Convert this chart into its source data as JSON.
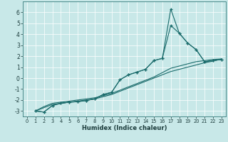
{
  "xlabel": "Humidex (Indice chaleur)",
  "bg_color": "#c8e8e8",
  "grid_color": "#ffffff",
  "line_color": "#1a6b6b",
  "xlim": [
    -0.5,
    23.5
  ],
  "ylim": [
    -3.5,
    7.0
  ],
  "xticks": [
    0,
    1,
    2,
    3,
    4,
    5,
    6,
    7,
    8,
    9,
    10,
    11,
    12,
    13,
    14,
    15,
    16,
    17,
    18,
    19,
    20,
    21,
    22,
    23
  ],
  "yticks": [
    -3,
    -2,
    -1,
    0,
    1,
    2,
    3,
    4,
    5,
    6
  ],
  "line1_x": [
    1,
    2,
    3,
    4,
    5,
    6,
    7,
    8,
    9,
    10,
    11,
    12,
    13,
    14,
    15,
    16,
    17,
    18,
    19,
    20,
    21,
    22,
    23
  ],
  "line1_y": [
    -3.0,
    -3.1,
    -2.5,
    -2.3,
    -2.2,
    -2.15,
    -2.05,
    -1.9,
    -1.5,
    -1.3,
    -0.15,
    0.3,
    0.55,
    0.8,
    1.6,
    1.8,
    6.3,
    4.1,
    3.2,
    2.6,
    1.5,
    1.6,
    1.7
  ],
  "line2_x": [
    1,
    2,
    3,
    4,
    5,
    6,
    7,
    8,
    9,
    10,
    11,
    12,
    13,
    14,
    15,
    16,
    17,
    18,
    19,
    20,
    21,
    22,
    23
  ],
  "line2_y": [
    -3.0,
    -3.1,
    -2.5,
    -2.3,
    -2.2,
    -2.15,
    -2.05,
    -1.9,
    -1.5,
    -1.3,
    -0.15,
    0.3,
    0.55,
    0.8,
    1.6,
    1.8,
    4.8,
    4.1,
    3.2,
    2.6,
    1.5,
    1.6,
    1.7
  ],
  "line3_x": [
    1,
    2,
    3,
    4,
    5,
    6,
    7,
    8,
    9,
    10,
    11,
    12,
    13,
    14,
    15,
    16,
    17,
    18,
    19,
    20,
    21,
    22,
    23
  ],
  "line3_y": [
    -3.0,
    -2.6,
    -2.3,
    -2.2,
    -2.1,
    -2.0,
    -1.9,
    -1.8,
    -1.6,
    -1.4,
    -1.1,
    -0.8,
    -0.5,
    -0.2,
    0.1,
    0.5,
    0.9,
    1.1,
    1.3,
    1.5,
    1.6,
    1.7,
    1.75
  ],
  "line4_x": [
    1,
    2,
    3,
    4,
    5,
    6,
    7,
    8,
    9,
    10,
    11,
    12,
    13,
    14,
    15,
    16,
    17,
    18,
    19,
    20,
    21,
    22,
    23
  ],
  "line4_y": [
    -3.0,
    -2.7,
    -2.4,
    -2.3,
    -2.2,
    -2.1,
    -2.0,
    -1.9,
    -1.7,
    -1.5,
    -1.2,
    -0.9,
    -0.6,
    -0.3,
    0.0,
    0.3,
    0.6,
    0.8,
    1.0,
    1.2,
    1.4,
    1.55,
    1.75
  ]
}
